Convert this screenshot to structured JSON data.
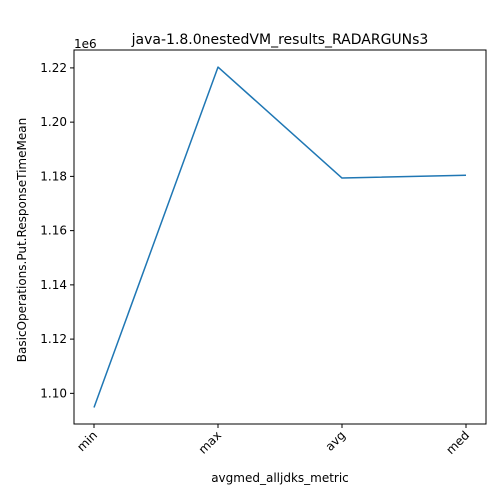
{
  "chart_data": {
    "type": "line",
    "title": "java-1.8.0nestedVM_results_RADARGUNs3",
    "xlabel": "avgmed_alljdks_metric",
    "ylabel": "BasicOperations.Put.ResponseTimeMean",
    "offset_label": "1e6",
    "categories": [
      "min",
      "max",
      "avg",
      "med"
    ],
    "series": [
      {
        "color": "#1f77b4",
        "values": [
          1094800,
          1220300,
          1179400,
          1180400
        ]
      }
    ],
    "ylim": [
      1.0887,
      1.2266
    ],
    "yticks": [
      1.1,
      1.12,
      1.14,
      1.16,
      1.18,
      1.2,
      1.22
    ],
    "ytick_labels": [
      "1.10",
      "1.12",
      "1.14",
      "1.16",
      "1.18",
      "1.20",
      "1.22"
    ],
    "grid": false,
    "legend": "none"
  }
}
